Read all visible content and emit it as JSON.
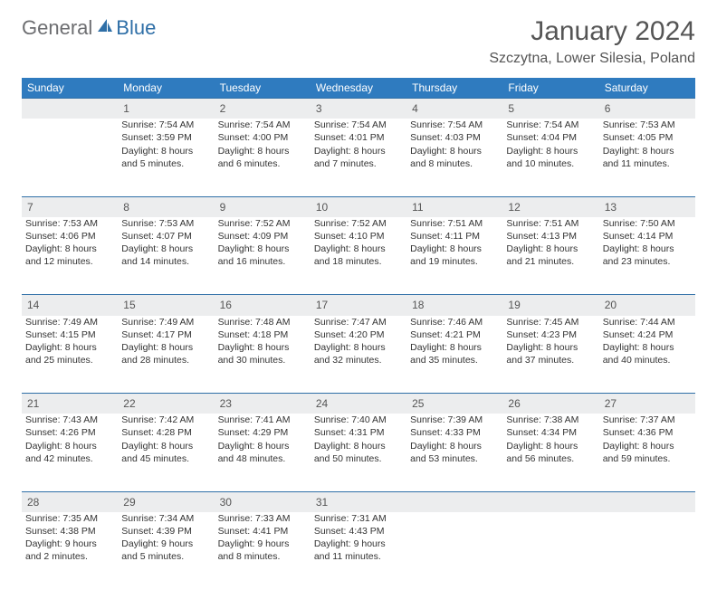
{
  "logo": {
    "general": "General",
    "blue": "Blue"
  },
  "title": "January 2024",
  "location": "Szczytna, Lower Silesia, Poland",
  "colors": {
    "header_bg": "#2f7bbf",
    "header_text": "#ffffff",
    "daynum_bg": "#ecedee",
    "daynum_border": "#2f6fa7",
    "logo_gray": "#6d6e71",
    "logo_blue": "#2f6fa7",
    "page_bg": "#ffffff"
  },
  "weekdays": [
    "Sunday",
    "Monday",
    "Tuesday",
    "Wednesday",
    "Thursday",
    "Friday",
    "Saturday"
  ],
  "weeks": [
    {
      "nums": [
        "",
        "1",
        "2",
        "3",
        "4",
        "5",
        "6"
      ],
      "cells": [
        {
          "sunrise": "",
          "sunset": "",
          "daylight": ""
        },
        {
          "sunrise": "Sunrise: 7:54 AM",
          "sunset": "Sunset: 3:59 PM",
          "daylight": "Daylight: 8 hours and 5 minutes."
        },
        {
          "sunrise": "Sunrise: 7:54 AM",
          "sunset": "Sunset: 4:00 PM",
          "daylight": "Daylight: 8 hours and 6 minutes."
        },
        {
          "sunrise": "Sunrise: 7:54 AM",
          "sunset": "Sunset: 4:01 PM",
          "daylight": "Daylight: 8 hours and 7 minutes."
        },
        {
          "sunrise": "Sunrise: 7:54 AM",
          "sunset": "Sunset: 4:03 PM",
          "daylight": "Daylight: 8 hours and 8 minutes."
        },
        {
          "sunrise": "Sunrise: 7:54 AM",
          "sunset": "Sunset: 4:04 PM",
          "daylight": "Daylight: 8 hours and 10 minutes."
        },
        {
          "sunrise": "Sunrise: 7:53 AM",
          "sunset": "Sunset: 4:05 PM",
          "daylight": "Daylight: 8 hours and 11 minutes."
        }
      ]
    },
    {
      "nums": [
        "7",
        "8",
        "9",
        "10",
        "11",
        "12",
        "13"
      ],
      "cells": [
        {
          "sunrise": "Sunrise: 7:53 AM",
          "sunset": "Sunset: 4:06 PM",
          "daylight": "Daylight: 8 hours and 12 minutes."
        },
        {
          "sunrise": "Sunrise: 7:53 AM",
          "sunset": "Sunset: 4:07 PM",
          "daylight": "Daylight: 8 hours and 14 minutes."
        },
        {
          "sunrise": "Sunrise: 7:52 AM",
          "sunset": "Sunset: 4:09 PM",
          "daylight": "Daylight: 8 hours and 16 minutes."
        },
        {
          "sunrise": "Sunrise: 7:52 AM",
          "sunset": "Sunset: 4:10 PM",
          "daylight": "Daylight: 8 hours and 18 minutes."
        },
        {
          "sunrise": "Sunrise: 7:51 AM",
          "sunset": "Sunset: 4:11 PM",
          "daylight": "Daylight: 8 hours and 19 minutes."
        },
        {
          "sunrise": "Sunrise: 7:51 AM",
          "sunset": "Sunset: 4:13 PM",
          "daylight": "Daylight: 8 hours and 21 minutes."
        },
        {
          "sunrise": "Sunrise: 7:50 AM",
          "sunset": "Sunset: 4:14 PM",
          "daylight": "Daylight: 8 hours and 23 minutes."
        }
      ]
    },
    {
      "nums": [
        "14",
        "15",
        "16",
        "17",
        "18",
        "19",
        "20"
      ],
      "cells": [
        {
          "sunrise": "Sunrise: 7:49 AM",
          "sunset": "Sunset: 4:15 PM",
          "daylight": "Daylight: 8 hours and 25 minutes."
        },
        {
          "sunrise": "Sunrise: 7:49 AM",
          "sunset": "Sunset: 4:17 PM",
          "daylight": "Daylight: 8 hours and 28 minutes."
        },
        {
          "sunrise": "Sunrise: 7:48 AM",
          "sunset": "Sunset: 4:18 PM",
          "daylight": "Daylight: 8 hours and 30 minutes."
        },
        {
          "sunrise": "Sunrise: 7:47 AM",
          "sunset": "Sunset: 4:20 PM",
          "daylight": "Daylight: 8 hours and 32 minutes."
        },
        {
          "sunrise": "Sunrise: 7:46 AM",
          "sunset": "Sunset: 4:21 PM",
          "daylight": "Daylight: 8 hours and 35 minutes."
        },
        {
          "sunrise": "Sunrise: 7:45 AM",
          "sunset": "Sunset: 4:23 PM",
          "daylight": "Daylight: 8 hours and 37 minutes."
        },
        {
          "sunrise": "Sunrise: 7:44 AM",
          "sunset": "Sunset: 4:24 PM",
          "daylight": "Daylight: 8 hours and 40 minutes."
        }
      ]
    },
    {
      "nums": [
        "21",
        "22",
        "23",
        "24",
        "25",
        "26",
        "27"
      ],
      "cells": [
        {
          "sunrise": "Sunrise: 7:43 AM",
          "sunset": "Sunset: 4:26 PM",
          "daylight": "Daylight: 8 hours and 42 minutes."
        },
        {
          "sunrise": "Sunrise: 7:42 AM",
          "sunset": "Sunset: 4:28 PM",
          "daylight": "Daylight: 8 hours and 45 minutes."
        },
        {
          "sunrise": "Sunrise: 7:41 AM",
          "sunset": "Sunset: 4:29 PM",
          "daylight": "Daylight: 8 hours and 48 minutes."
        },
        {
          "sunrise": "Sunrise: 7:40 AM",
          "sunset": "Sunset: 4:31 PM",
          "daylight": "Daylight: 8 hours and 50 minutes."
        },
        {
          "sunrise": "Sunrise: 7:39 AM",
          "sunset": "Sunset: 4:33 PM",
          "daylight": "Daylight: 8 hours and 53 minutes."
        },
        {
          "sunrise": "Sunrise: 7:38 AM",
          "sunset": "Sunset: 4:34 PM",
          "daylight": "Daylight: 8 hours and 56 minutes."
        },
        {
          "sunrise": "Sunrise: 7:37 AM",
          "sunset": "Sunset: 4:36 PM",
          "daylight": "Daylight: 8 hours and 59 minutes."
        }
      ]
    },
    {
      "nums": [
        "28",
        "29",
        "30",
        "31",
        "",
        "",
        ""
      ],
      "cells": [
        {
          "sunrise": "Sunrise: 7:35 AM",
          "sunset": "Sunset: 4:38 PM",
          "daylight": "Daylight: 9 hours and 2 minutes."
        },
        {
          "sunrise": "Sunrise: 7:34 AM",
          "sunset": "Sunset: 4:39 PM",
          "daylight": "Daylight: 9 hours and 5 minutes."
        },
        {
          "sunrise": "Sunrise: 7:33 AM",
          "sunset": "Sunset: 4:41 PM",
          "daylight": "Daylight: 9 hours and 8 minutes."
        },
        {
          "sunrise": "Sunrise: 7:31 AM",
          "sunset": "Sunset: 4:43 PM",
          "daylight": "Daylight: 9 hours and 11 minutes."
        },
        {
          "sunrise": "",
          "sunset": "",
          "daylight": ""
        },
        {
          "sunrise": "",
          "sunset": "",
          "daylight": ""
        },
        {
          "sunrise": "",
          "sunset": "",
          "daylight": ""
        }
      ]
    }
  ]
}
